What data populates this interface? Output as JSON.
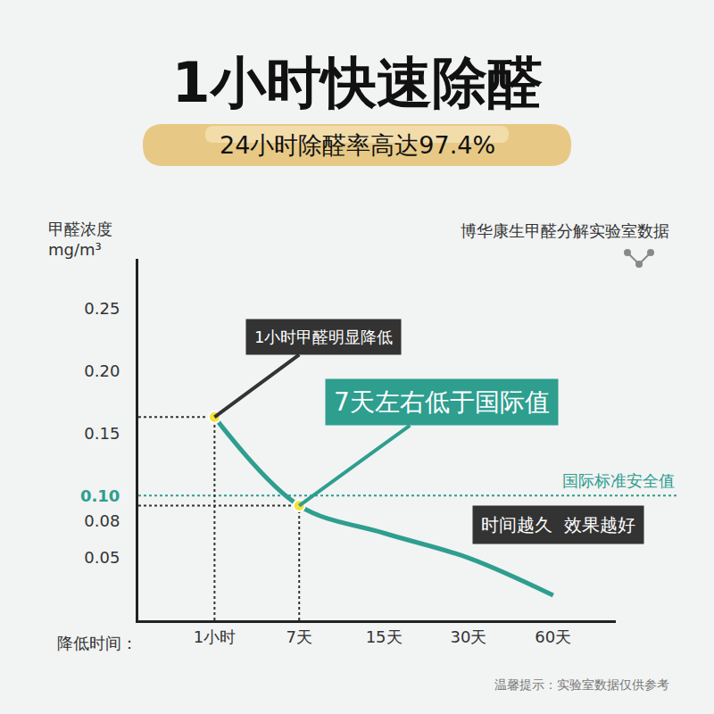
{
  "chart_data": {
    "type": "line",
    "title": "1小时快速除醛",
    "subtitle": "24小时除醛率高达97.4%",
    "source": "博华康生甲醛分解实验室数据",
    "footnote": "温馨提示：实验室数据仅供参考",
    "xlabel": "降低时间：",
    "ylabel": "甲醛浓度\nmg/m³",
    "categories": [
      "1小时",
      "7天",
      "15天",
      "30天",
      "60天"
    ],
    "values": [
      0.163,
      0.092,
      0.07,
      0.05,
      0.02
    ],
    "color": "#2e9e8f",
    "ylim": [
      0,
      0.29
    ],
    "yticks": [
      0.05,
      0.08,
      {
        "value": 0.1,
        "label": "0.10"
      },
      0.15,
      {
        "value": 0.2,
        "label": "0.20"
      },
      0.25
    ],
    "grid": false,
    "reference_line": {
      "value": 0.1,
      "label": "国际标准安全值"
    },
    "annotations": [
      {
        "text": "1小时甲醛明显降低",
        "at": "1小时"
      },
      {
        "text": "7天左右低于国际值",
        "at": "7天"
      },
      {
        "text": "时间越久  效果越好"
      }
    ]
  }
}
